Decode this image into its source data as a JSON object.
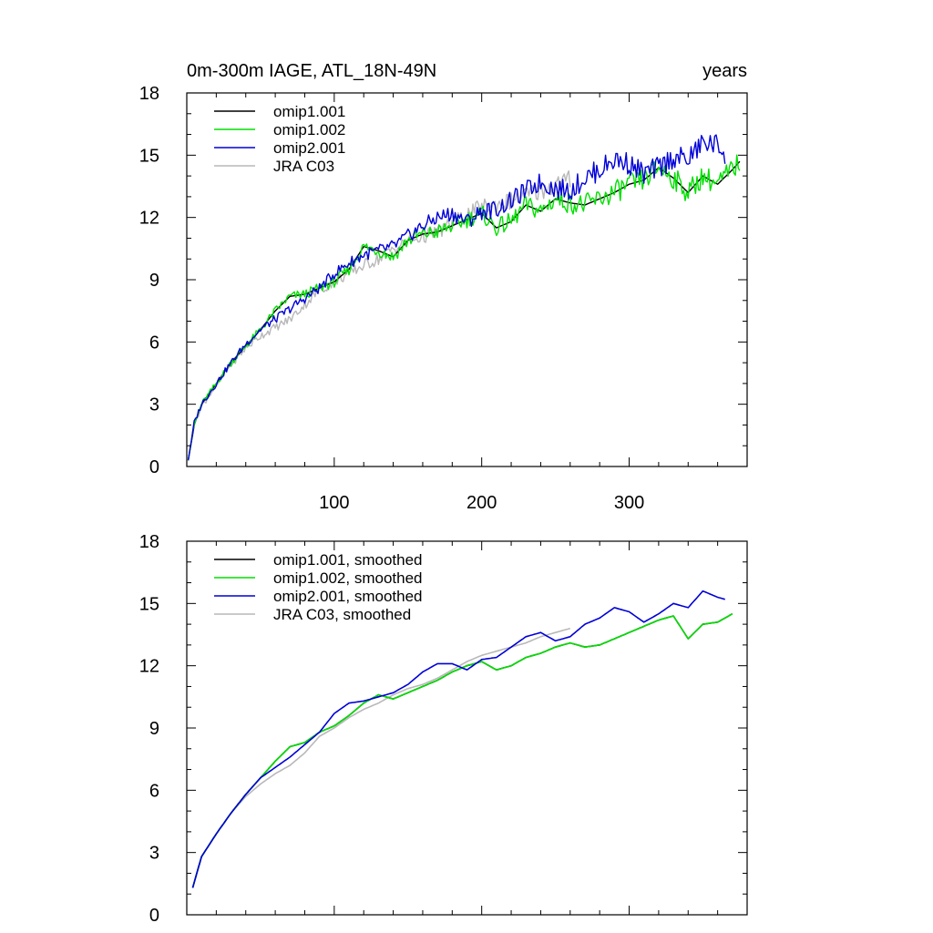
{
  "chart_data": [
    {
      "type": "line",
      "title": "0m-300m IAGE, ATL_18N-49N",
      "title_right": "years",
      "xlabel": "",
      "ylabel": "",
      "xlim": [
        0,
        380
      ],
      "ylim": [
        0,
        18
      ],
      "xticks": [
        100,
        200,
        300
      ],
      "yticks": [
        0,
        3,
        6,
        9,
        12,
        15,
        18
      ],
      "legend_position": "top-left",
      "series": [
        {
          "name": "omip1.001",
          "color": "#000000",
          "x": [
            1,
            375
          ],
          "y": [
            0.2,
            14.8
          ]
        },
        {
          "name": "omip1.002",
          "color": "#00e000",
          "x": [
            1,
            5,
            10,
            20,
            30,
            40,
            50,
            60,
            70,
            80,
            90,
            100,
            110,
            120,
            130,
            140,
            150,
            160,
            170,
            180,
            190,
            200,
            210,
            220,
            230,
            240,
            250,
            260,
            270,
            280,
            290,
            300,
            310,
            320,
            330,
            340,
            350,
            360,
            370,
            375
          ],
          "y": [
            0.3,
            2.0,
            3.0,
            4.0,
            5.0,
            5.8,
            6.6,
            7.5,
            8.2,
            8.3,
            8.6,
            8.9,
            9.5,
            10.6,
            10.4,
            10.1,
            10.9,
            11.2,
            11.3,
            11.6,
            11.9,
            12.2,
            11.5,
            11.8,
            12.6,
            12.3,
            12.9,
            12.7,
            12.6,
            12.9,
            13.2,
            13.6,
            13.8,
            14.4,
            13.9,
            13.2,
            14.0,
            13.6,
            14.3,
            14.7
          ]
        },
        {
          "name": "omip2.001",
          "color": "#0000d8",
          "x": [
            1,
            5,
            10,
            20,
            30,
            40,
            50,
            60,
            70,
            80,
            90,
            100,
            110,
            120,
            130,
            140,
            150,
            160,
            170,
            180,
            190,
            200,
            210,
            220,
            230,
            240,
            250,
            260,
            270,
            280,
            290,
            300,
            310,
            320,
            330,
            340,
            350,
            360,
            365
          ],
          "y": [
            0.3,
            2.1,
            3.0,
            4.0,
            5.0,
            5.9,
            6.6,
            7.1,
            7.6,
            8.1,
            8.6,
            9.3,
            9.8,
            10.2,
            10.4,
            10.6,
            11.1,
            11.6,
            12.0,
            12.2,
            11.8,
            12.3,
            12.4,
            12.8,
            13.3,
            13.7,
            13.4,
            13.3,
            13.9,
            14.3,
            14.8,
            14.6,
            14.1,
            14.4,
            14.9,
            14.8,
            15.6,
            15.5,
            15.1
          ]
        },
        {
          "name": "JRA C03",
          "color": "#b8b8b8",
          "x": [
            1,
            5,
            10,
            20,
            30,
            40,
            50,
            60,
            70,
            80,
            90,
            100,
            110,
            120,
            130,
            140,
            150,
            160,
            170,
            180,
            190,
            200,
            210,
            220,
            230,
            240,
            250,
            260
          ],
          "y": [
            0.3,
            2.0,
            2.9,
            3.9,
            4.9,
            5.7,
            6.3,
            6.7,
            7.1,
            7.8,
            8.5,
            8.9,
            9.3,
            9.7,
            10.0,
            10.5,
            10.8,
            11.1,
            11.3,
            11.7,
            12.1,
            12.5,
            12.6,
            12.8,
            13.1,
            13.3,
            13.6,
            13.8
          ]
        }
      ]
    },
    {
      "type": "line",
      "title": "",
      "xlabel": "",
      "ylabel": "",
      "xlim": [
        0,
        380
      ],
      "ylim": [
        0,
        18
      ],
      "xticks": [
        100,
        200,
        300
      ],
      "yticks": [
        0,
        3,
        6,
        9,
        12,
        15,
        18
      ],
      "legend_position": "top-left",
      "series": [
        {
          "name": "omip1.001, smoothed",
          "color": "#000000",
          "x": [
            4,
            370
          ],
          "y": [
            1.3,
            14.5
          ]
        },
        {
          "name": "omip1.002, smoothed",
          "color": "#00e000",
          "x": [
            4,
            10,
            20,
            30,
            40,
            50,
            60,
            70,
            80,
            90,
            100,
            110,
            120,
            130,
            140,
            150,
            160,
            170,
            180,
            190,
            200,
            210,
            220,
            230,
            240,
            250,
            260,
            270,
            280,
            290,
            300,
            310,
            320,
            330,
            340,
            350,
            360,
            370
          ],
          "y": [
            1.3,
            2.8,
            3.9,
            4.9,
            5.8,
            6.6,
            7.4,
            8.1,
            8.3,
            8.8,
            9.1,
            9.6,
            10.2,
            10.6,
            10.4,
            10.7,
            11.0,
            11.3,
            11.7,
            12.0,
            12.2,
            11.8,
            12.0,
            12.4,
            12.6,
            12.9,
            13.1,
            12.9,
            13.0,
            13.3,
            13.6,
            13.9,
            14.2,
            14.4,
            13.3,
            14.0,
            14.1,
            14.5
          ]
        },
        {
          "name": "omip2.001, smoothed",
          "color": "#0000d8",
          "x": [
            4,
            10,
            20,
            30,
            40,
            50,
            60,
            70,
            80,
            90,
            100,
            110,
            120,
            130,
            140,
            150,
            160,
            170,
            180,
            190,
            200,
            210,
            220,
            230,
            240,
            250,
            260,
            270,
            280,
            290,
            300,
            310,
            320,
            330,
            340,
            350,
            360,
            365
          ],
          "y": [
            1.3,
            2.8,
            3.9,
            4.9,
            5.8,
            6.6,
            7.1,
            7.6,
            8.2,
            8.8,
            9.7,
            10.2,
            10.3,
            10.5,
            10.7,
            11.1,
            11.7,
            12.1,
            12.1,
            11.8,
            12.3,
            12.4,
            12.9,
            13.4,
            13.6,
            13.2,
            13.4,
            14.0,
            14.3,
            14.8,
            14.6,
            14.1,
            14.5,
            15.0,
            14.8,
            15.6,
            15.3,
            15.2
          ]
        },
        {
          "name": "JRA C03, smoothed",
          "color": "#b8b8b8",
          "x": [
            4,
            10,
            20,
            30,
            40,
            50,
            60,
            70,
            80,
            90,
            100,
            110,
            120,
            130,
            140,
            150,
            160,
            170,
            180,
            190,
            200,
            210,
            220,
            230,
            240,
            250,
            260
          ],
          "y": [
            1.3,
            2.8,
            3.9,
            4.9,
            5.7,
            6.3,
            6.8,
            7.2,
            7.8,
            8.6,
            9.0,
            9.5,
            9.9,
            10.2,
            10.6,
            10.9,
            11.1,
            11.4,
            11.8,
            12.2,
            12.5,
            12.7,
            12.9,
            13.1,
            13.4,
            13.6,
            13.8
          ]
        }
      ]
    }
  ]
}
